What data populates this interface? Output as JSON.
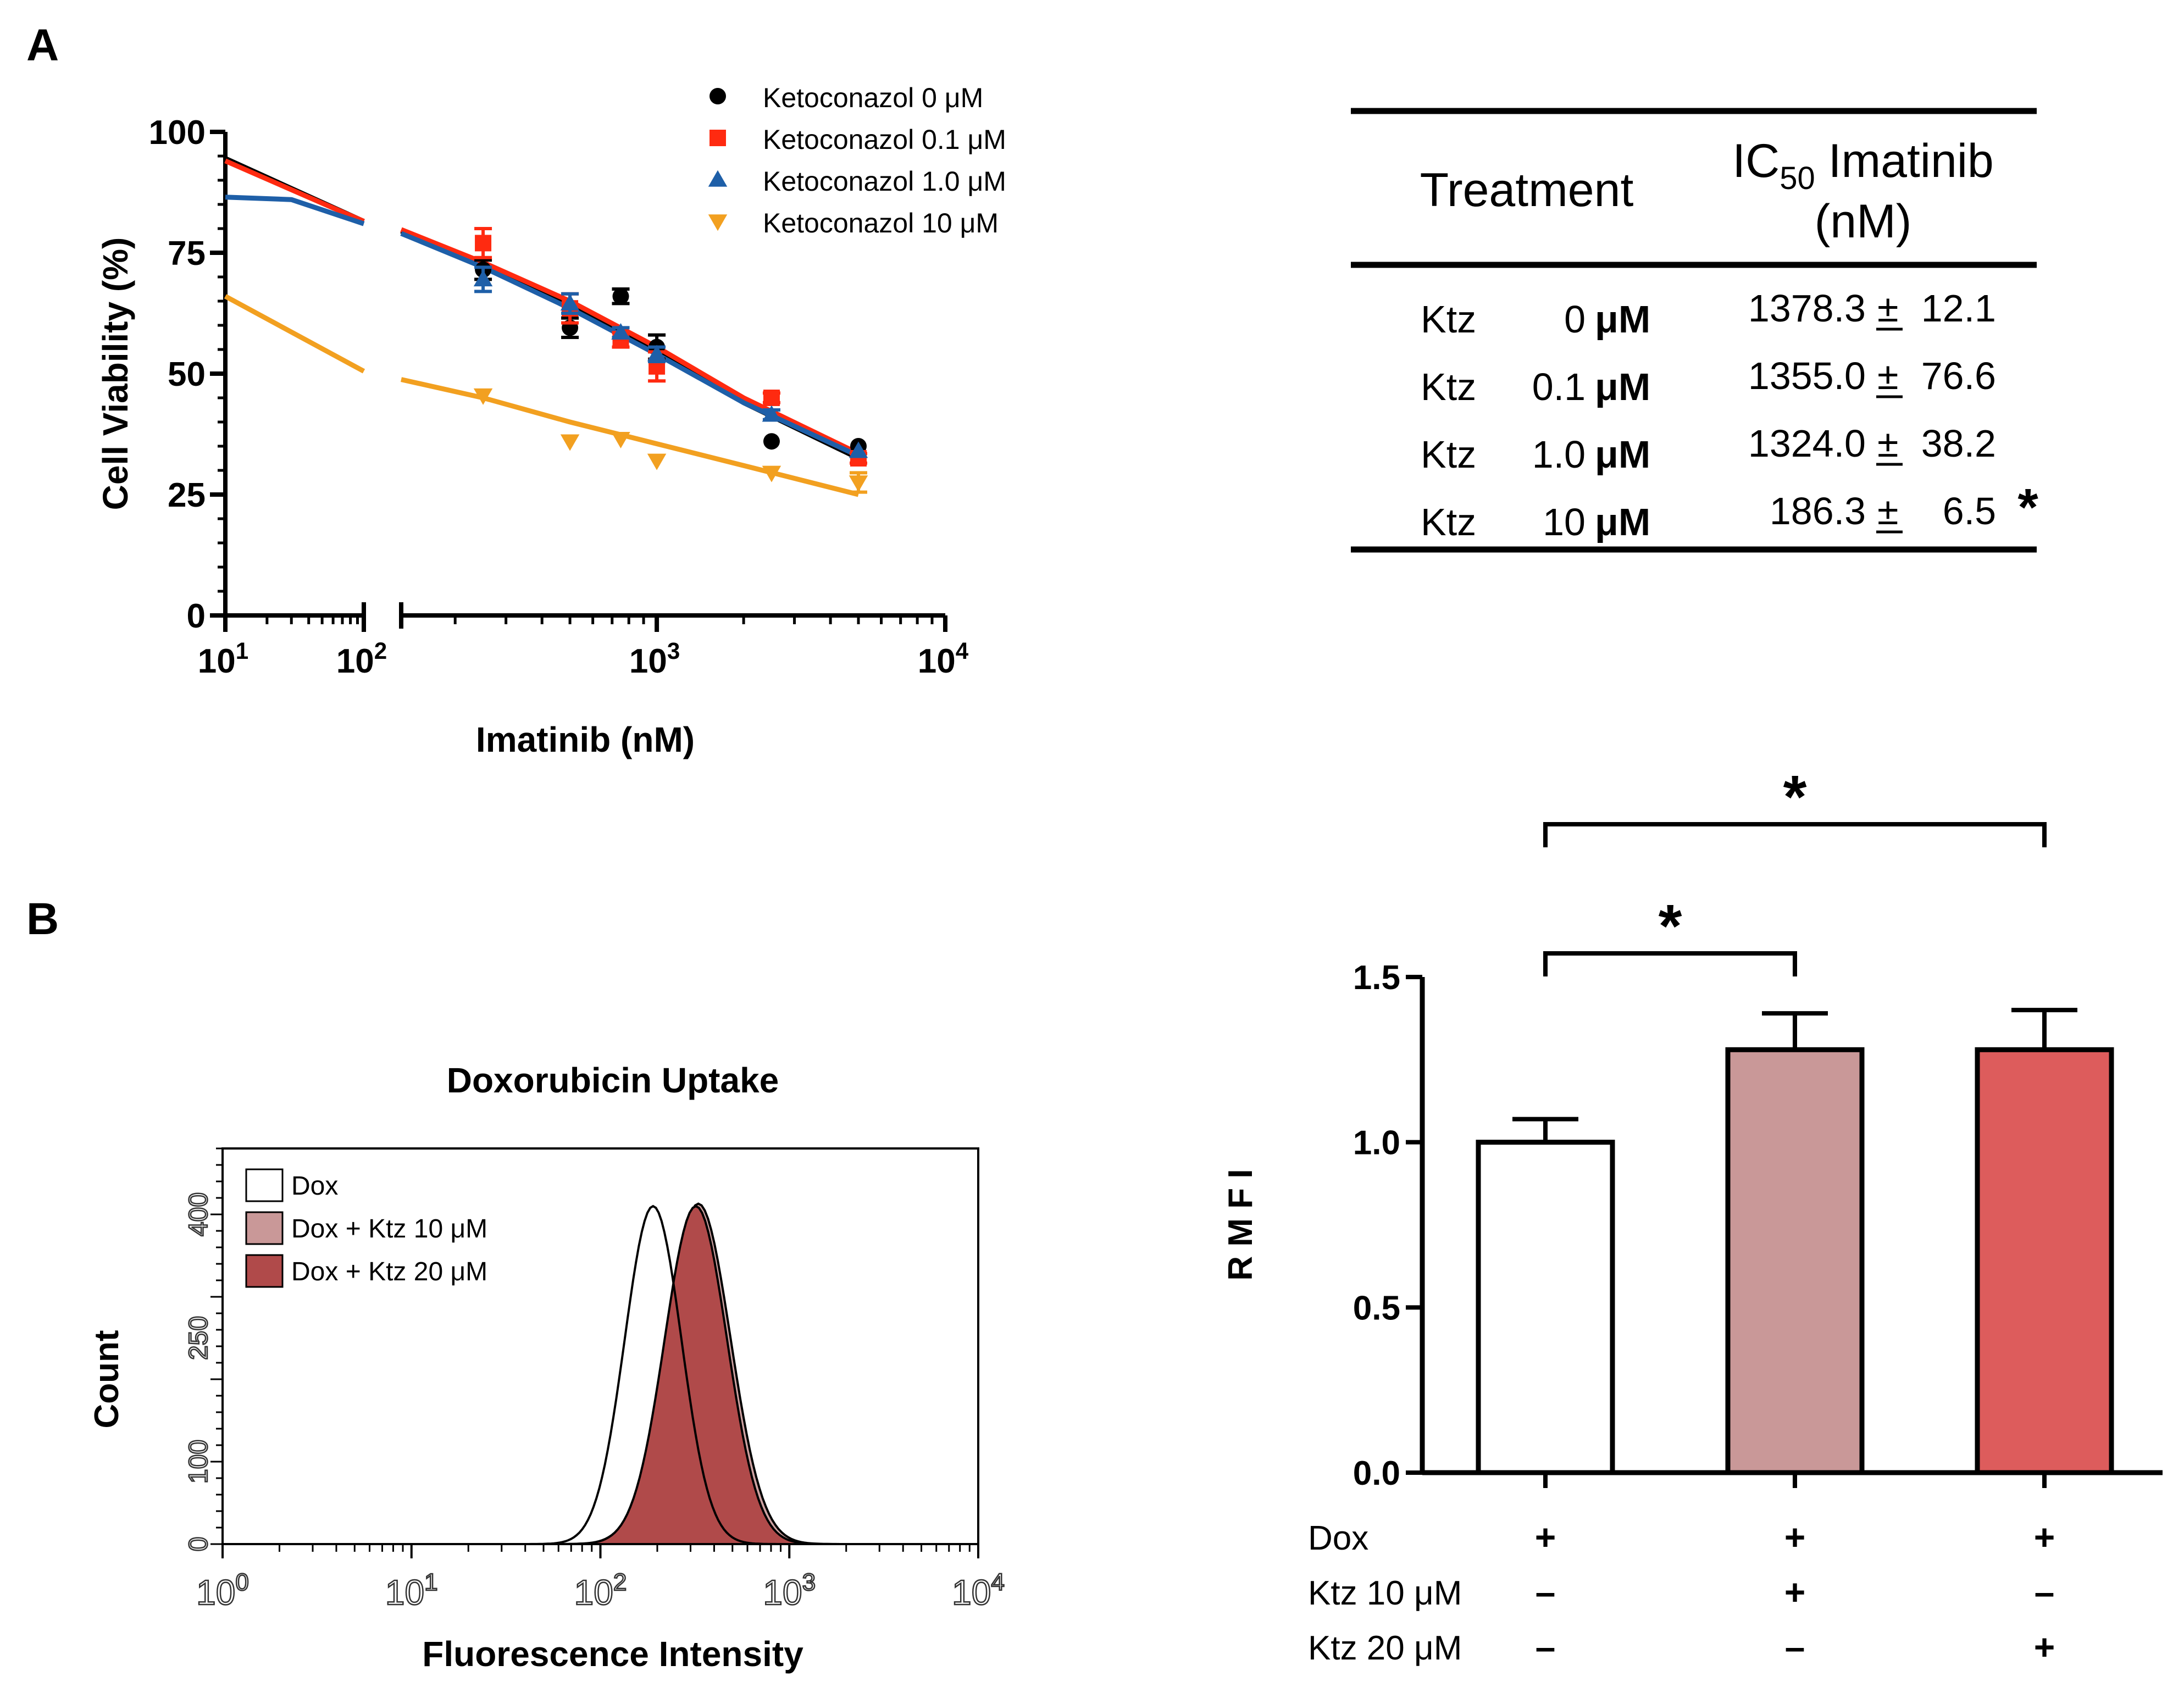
{
  "panel_labels": {
    "a": "A",
    "b": "B"
  },
  "chart_data": [
    {
      "id": "dose-response",
      "type": "scatter",
      "title": "",
      "xlabel": "Imatinib (nM)",
      "ylabel": "Cell Viability (%)",
      "xscale": "log",
      "xlim": [
        10,
        10000
      ],
      "x_axis_break": [
        100,
        130
      ],
      "ylim": [
        0,
        100
      ],
      "xticks": [
        {
          "value": 10,
          "base": "10",
          "exp": "1"
        },
        {
          "value": 100,
          "base": "10",
          "exp": "2"
        },
        {
          "value": 1000,
          "base": "10",
          "exp": "3"
        },
        {
          "value": 10000,
          "base": "10",
          "exp": "4"
        }
      ],
      "yticks": [
        {
          "value": 0,
          "label": "0"
        },
        {
          "value": 25,
          "label": "25"
        },
        {
          "value": 50,
          "label": "50"
        },
        {
          "value": 75,
          "label": "75"
        },
        {
          "value": 100,
          "label": "100"
        }
      ],
      "legend_position": "top-right",
      "series": [
        {
          "name": "Ketoconazol 0 μM",
          "color": "#000000",
          "marker": "circle",
          "x": [
            250,
            500,
            750,
            1000,
            2500,
            5000
          ],
          "y": [
            71.5,
            59.5,
            66,
            55.5,
            36,
            35
          ],
          "err": [
            2,
            2,
            1.5,
            2.5,
            0.5,
            0.5
          ],
          "fit": [
            [
              10,
              94.5
            ],
            [
              100,
              81.5
            ],
            [
              130,
              79.5
            ],
            [
              250,
              72.5
            ],
            [
              500,
              64
            ],
            [
              1000,
              54.5
            ],
            [
              2000,
              44
            ],
            [
              5000,
              32.5
            ]
          ]
        },
        {
          "name": "Ketoconazol 0.1 μM",
          "color": "#ff2a10",
          "marker": "square",
          "x": [
            250,
            500,
            750,
            1000,
            2500,
            5000
          ],
          "y": [
            77,
            63.5,
            57,
            51.5,
            45,
            32.5
          ],
          "err": [
            3,
            3,
            1.5,
            3,
            1,
            1
          ],
          "fit": [
            [
              10,
              94
            ],
            [
              100,
              81.5
            ],
            [
              130,
              79.8
            ],
            [
              250,
              73
            ],
            [
              500,
              65
            ],
            [
              1000,
              55.5
            ],
            [
              2000,
              45
            ],
            [
              5000,
              33.5
            ]
          ]
        },
        {
          "name": "Ketoconazol 1.0 μM",
          "color": "#1e5fa8",
          "marker": "triangle-up",
          "x": [
            250,
            500,
            750,
            1000,
            2500,
            5000
          ],
          "y": [
            69.5,
            64.5,
            58.5,
            54,
            41.5,
            34
          ],
          "err": [
            2.5,
            2,
            1,
            1.5,
            1,
            0.5
          ],
          "fit": [
            [
              10,
              86.5
            ],
            [
              30,
              86
            ],
            [
              100,
              81
            ],
            [
              130,
              79
            ],
            [
              250,
              72
            ],
            [
              500,
              63.5
            ],
            [
              1000,
              54
            ],
            [
              2000,
              44
            ],
            [
              5000,
              33
            ]
          ]
        },
        {
          "name": "Ketoconazol 10 μM",
          "color": "#f2a020",
          "marker": "triangle-down",
          "x": [
            250,
            500,
            750,
            1000,
            2500,
            5000
          ],
          "y": [
            45.5,
            36,
            36.5,
            32,
            29.5,
            27.5
          ],
          "err": [
            0.5,
            0.5,
            0.5,
            0.5,
            0.5,
            2
          ],
          "fit": [
            [
              10,
              66
            ],
            [
              100,
              50.5
            ],
            [
              130,
              48.8
            ],
            [
              250,
              45
            ],
            [
              500,
              40
            ],
            [
              1000,
              35.5
            ],
            [
              2000,
              31
            ],
            [
              5000,
              25
            ]
          ]
        }
      ]
    },
    {
      "id": "ic50-table",
      "type": "table",
      "columns": [
        "Treatment",
        "IC50 Imatinib (nM)"
      ],
      "header": {
        "treatment": "Treatment",
        "ic": "IC",
        "sub": "50",
        "imatinib": " Imatinib",
        "unit": "(nM)"
      },
      "rows": [
        {
          "agent": "Ktz",
          "conc": "0",
          "unit": "μM",
          "value": "1378.3",
          "pm": "±",
          "sd": "12.1",
          "flag": ""
        },
        {
          "agent": "Ktz",
          "conc": "0.1",
          "unit": "μM",
          "value": "1355.0",
          "pm": "±",
          "sd": "76.6",
          "flag": ""
        },
        {
          "agent": "Ktz",
          "conc": "1.0",
          "unit": "μM",
          "value": "1324.0",
          "pm": "±",
          "sd": "38.2",
          "flag": ""
        },
        {
          "agent": "Ktz",
          "conc": "10",
          "unit": "μM",
          "value": "186.3",
          "pm": "±",
          "sd": "6.5",
          "flag": "*"
        }
      ]
    },
    {
      "id": "flow-histogram",
      "type": "area",
      "title": "Doxorubicin Uptake",
      "xlabel": "Fluorescence Intensity",
      "ylabel": "Count",
      "xscale": "log",
      "xlim": [
        1,
        10000
      ],
      "xticks": [
        {
          "value": 1,
          "base": "10",
          "exp": "0"
        },
        {
          "value": 10,
          "base": "10",
          "exp": "1"
        },
        {
          "value": 100,
          "base": "10",
          "exp": "2"
        },
        {
          "value": 1000,
          "base": "10",
          "exp": "3"
        },
        {
          "value": 10000,
          "base": "10",
          "exp": "4"
        }
      ],
      "ylim": [
        0,
        480
      ],
      "yticks": [
        {
          "value": 0,
          "label": "0"
        },
        {
          "value": 100,
          "label": "100"
        },
        {
          "value": 250,
          "label": "250"
        },
        {
          "value": 400,
          "label": "400"
        }
      ],
      "legend_position": "top-left",
      "series": [
        {
          "name": "Dox",
          "fill": "#ffffff",
          "peak_x": 190,
          "peak_y": 410,
          "sigma": 0.15
        },
        {
          "name": "Dox + Ktz 10 μM",
          "fill": "#c99898",
          "peak_x": 330,
          "peak_y": 413,
          "sigma": 0.17
        },
        {
          "name": "Dox + Ktz 20 μM",
          "fill": "#b04a4a",
          "peak_x": 320,
          "peak_y": 410,
          "sigma": 0.165
        }
      ]
    },
    {
      "id": "rmfi-bar",
      "type": "bar",
      "ylabel": "R M F I",
      "ylim": [
        0,
        1.5
      ],
      "yticks": [
        {
          "value": 0,
          "label": "0.0"
        },
        {
          "value": 0.5,
          "label": "0.5"
        },
        {
          "value": 1,
          "label": "1.0"
        },
        {
          "value": 1.5,
          "label": "1.5"
        }
      ],
      "categories": [
        "Dox",
        "Dox + Ktz 10 μM",
        "Dox + Ktz 20 μM"
      ],
      "values": [
        1.0,
        1.28,
        1.28
      ],
      "errors": [
        0.07,
        0.11,
        0.12
      ],
      "colors": [
        "#ffffff",
        "#c99898",
        "#dd5c5c"
      ],
      "significance": [
        {
          "from": 0,
          "to": 1,
          "label": "*"
        },
        {
          "from": 0,
          "to": 2,
          "label": "*"
        }
      ],
      "treatment_table": [
        {
          "label": "Dox",
          "marks": [
            "+",
            "+",
            "+"
          ]
        },
        {
          "label": "Ktz 10 μM",
          "marks": [
            "–",
            "+",
            "–"
          ]
        },
        {
          "label": "Ktz 20 μM",
          "marks": [
            "–",
            "–",
            "+"
          ]
        }
      ]
    }
  ]
}
